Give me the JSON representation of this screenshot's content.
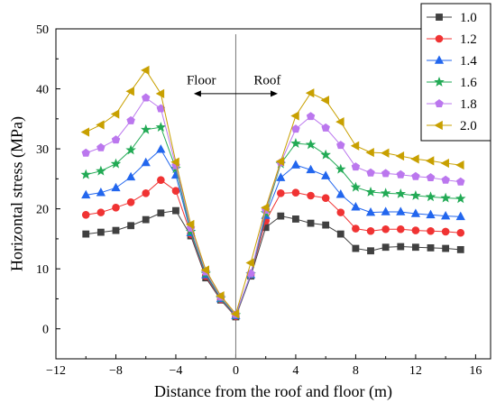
{
  "chart_data": {
    "type": "line",
    "xlabel": "Distance from the roof and floor (m)",
    "ylabel": "Horizontal stress (MPa)",
    "xlim": [
      -12,
      17
    ],
    "ylim": [
      -5,
      50
    ],
    "xticks": [
      -12,
      -8,
      -4,
      0,
      4,
      8,
      12,
      16
    ],
    "yticks": [
      0,
      10,
      20,
      30,
      40,
      50
    ],
    "grid": false,
    "legend_position": "top-right",
    "annotations": [
      {
        "text": "Floor",
        "x": -2.3,
        "y": 41.5
      },
      {
        "text": "Roof",
        "x": 2.1,
        "y": 41.5
      }
    ],
    "arrow": {
      "x_from": -2.8,
      "x_to": 2.8,
      "y": 39.2
    },
    "x": [
      -10,
      -9,
      -8,
      -7,
      -6,
      -5,
      -4,
      -3,
      -2,
      -1,
      0,
      1,
      2,
      3,
      4,
      5,
      6,
      7,
      8,
      9,
      10,
      11,
      12,
      13,
      14,
      15
    ],
    "series": [
      {
        "name": "1.0",
        "color": "#404040",
        "marker": "square",
        "values": [
          15.8,
          16.1,
          16.4,
          17.2,
          18.2,
          19.3,
          19.7,
          15.5,
          8.5,
          4.8,
          2.0,
          8.8,
          16.9,
          18.8,
          18.3,
          17.6,
          17.3,
          15.8,
          13.4,
          13.0,
          13.6,
          13.7,
          13.6,
          13.5,
          13.4,
          13.2
        ]
      },
      {
        "name": "1.2",
        "color": "#f03333",
        "marker": "circle",
        "values": [
          19.0,
          19.4,
          20.2,
          21.1,
          22.6,
          24.8,
          23.0,
          15.8,
          8.8,
          4.9,
          2.1,
          9.0,
          18.0,
          22.6,
          22.7,
          22.2,
          21.8,
          19.4,
          16.7,
          16.3,
          16.6,
          16.6,
          16.4,
          16.3,
          16.2,
          16.0
        ]
      },
      {
        "name": "1.4",
        "color": "#2266ee",
        "marker": "triangle",
        "values": [
          22.3,
          22.7,
          23.5,
          25.3,
          27.7,
          29.9,
          25.6,
          16.0,
          9.0,
          5.0,
          2.2,
          9.0,
          18.9,
          25.2,
          27.3,
          26.5,
          25.5,
          22.4,
          20.3,
          19.4,
          19.5,
          19.5,
          19.2,
          19.0,
          18.8,
          18.7
        ]
      },
      {
        "name": "1.6",
        "color": "#22aa55",
        "marker": "star",
        "values": [
          25.7,
          26.3,
          27.5,
          29.8,
          33.2,
          33.6,
          26.7,
          16.2,
          9.2,
          5.1,
          2.3,
          9.1,
          19.3,
          27.5,
          30.9,
          30.7,
          29.0,
          26.6,
          23.6,
          22.8,
          22.6,
          22.5,
          22.2,
          22.0,
          21.8,
          21.7
        ]
      },
      {
        "name": "1.8",
        "color": "#bb77ee",
        "marker": "pentagon",
        "values": [
          29.3,
          30.2,
          31.5,
          34.7,
          38.5,
          36.7,
          27.2,
          16.8,
          9.5,
          5.3,
          2.4,
          9.2,
          19.8,
          27.7,
          33.3,
          35.4,
          33.5,
          30.6,
          27.0,
          26.0,
          25.9,
          25.7,
          25.4,
          25.2,
          24.8,
          24.5
        ]
      },
      {
        "name": "2.0",
        "color": "#c8a000",
        "marker": "triangle-left",
        "values": [
          32.8,
          34.0,
          35.8,
          39.6,
          43.1,
          39.2,
          27.8,
          17.4,
          9.8,
          5.5,
          2.5,
          11.0,
          20.2,
          27.9,
          35.5,
          39.3,
          38.1,
          34.5,
          30.5,
          29.4,
          29.3,
          28.8,
          28.3,
          28.0,
          27.6,
          27.3
        ]
      }
    ]
  }
}
